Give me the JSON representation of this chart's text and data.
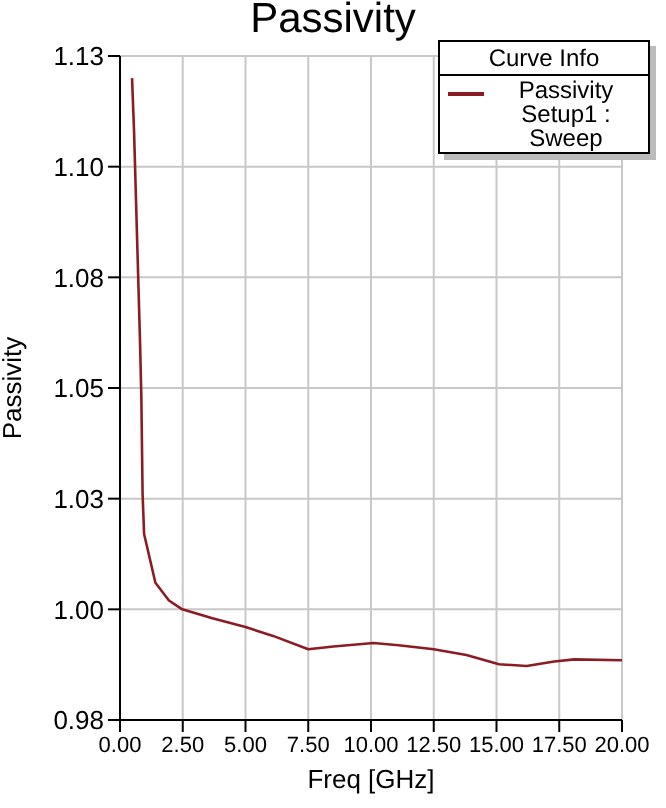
{
  "chart_data": {
    "type": "line",
    "title": "Passivity",
    "xlabel": "Freq [GHz]",
    "ylabel": "Passivity",
    "legend_title": "Curve Info",
    "legend": "top right",
    "grid": true,
    "marker": "none",
    "line_style": "solid",
    "xlim": [
      0,
      20
    ],
    "xticks": [
      {
        "value": 0,
        "label": "0.00"
      },
      {
        "value": 2.5,
        "label": "2.50"
      },
      {
        "value": 5,
        "label": "5.00"
      },
      {
        "value": 7.5,
        "label": "7.50"
      },
      {
        "value": 10,
        "label": "10.00"
      },
      {
        "value": 12.5,
        "label": "12.50"
      },
      {
        "value": 15,
        "label": "15.00"
      },
      {
        "value": 17.5,
        "label": "17.50"
      },
      {
        "value": 20,
        "label": "20.00"
      }
    ],
    "ylim": [
      0.975,
      1.125
    ],
    "yticks": [
      {
        "value": 0.975,
        "label": "0.98"
      },
      {
        "value": 1,
        "label": "1.00"
      },
      {
        "value": 1.025,
        "label": "1.03"
      },
      {
        "value": 1.05,
        "label": "1.05"
      },
      {
        "value": 1.075,
        "label": "1.08"
      },
      {
        "value": 1.1,
        "label": "1.10"
      },
      {
        "value": 1.125,
        "label": "1.13"
      }
    ],
    "series": [
      {
        "name": "Passivity\nSetup1 : Sweep",
        "color": "#8c1c24",
        "x": [
          0.48,
          0.56,
          0.64,
          0.72,
          0.8,
          0.85,
          0.9,
          0.96,
          1.41,
          1.95,
          2.48,
          3.68,
          5.0,
          6.1,
          7.5,
          8.5,
          10.1,
          11.1,
          12.5,
          13.8,
          15.1,
          16.2,
          17.3,
          18.1,
          20
        ],
        "values": [
          1.12,
          1.108,
          1.092,
          1.076,
          1.06,
          1.048,
          1.026,
          1.017,
          1.006,
          1.002,
          1.0,
          0.998,
          0.996,
          0.994,
          0.991,
          0.9916,
          0.9924,
          0.9919,
          0.991,
          0.9897,
          0.9876,
          0.9872,
          0.9882,
          0.9887,
          0.9885
        ]
      }
    ]
  }
}
